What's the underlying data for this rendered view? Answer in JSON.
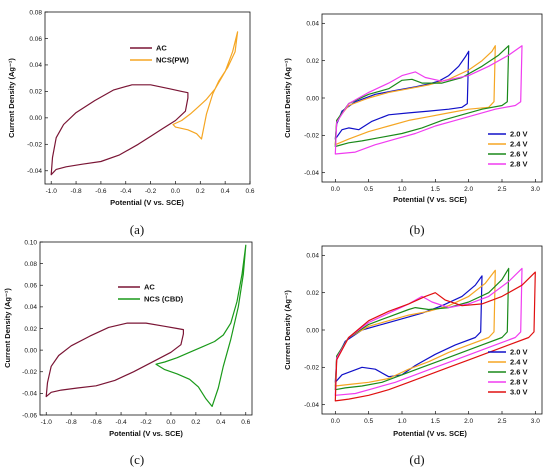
{
  "chart_data": [
    {
      "id": "a",
      "type": "line",
      "caption": "(a)",
      "xlabel": "Potential (V vs. SCE)",
      "ylabel": "Current Density (Ag⁻¹)",
      "xlim": [
        -1.05,
        0.6
      ],
      "ylim": [
        -0.05,
        0.08
      ],
      "xticks": [
        -1.0,
        -0.8,
        -0.6,
        -0.4,
        -0.2,
        0.0,
        0.2,
        0.4,
        0.6
      ],
      "xtick_labels": [
        "-1.0",
        "-0.8",
        "-0.6",
        "-0.4",
        "-0.2",
        "0.0",
        "0.2",
        "0.4",
        "0.6"
      ],
      "yticks": [
        -0.04,
        -0.02,
        0.0,
        0.02,
        0.04,
        0.06,
        0.08
      ],
      "ytick_labels": [
        "-0.04",
        "-0.02",
        "0.00",
        "0.02",
        "0.04",
        "0.06",
        "0.08"
      ],
      "legend_position": "upper-left",
      "series": [
        {
          "name": "AC",
          "color": "#7a1535",
          "x": [
            -1.0,
            -0.99,
            -0.96,
            -0.9,
            -0.8,
            -0.65,
            -0.5,
            -0.35,
            -0.2,
            -0.05,
            0.05,
            0.1,
            0.1,
            0.08,
            0.0,
            -0.1,
            -0.2,
            -0.3,
            -0.45,
            -0.6,
            -0.75,
            -0.88,
            -0.96,
            -1.0
          ],
          "y": [
            -0.043,
            -0.03,
            -0.015,
            -0.005,
            0.004,
            0.013,
            0.021,
            0.025,
            0.025,
            0.022,
            0.02,
            0.019,
            0.015,
            0.005,
            -0.002,
            -0.008,
            -0.014,
            -0.02,
            -0.028,
            -0.033,
            -0.035,
            -0.037,
            -0.039,
            -0.043
          ]
        },
        {
          "name": "NCS(PW)",
          "color": "#f5a623",
          "x": [
            -0.02,
            0.05,
            0.12,
            0.18,
            0.25,
            0.32,
            0.4,
            0.46,
            0.5,
            0.48,
            0.42,
            0.35,
            0.3,
            0.25,
            0.21,
            0.17,
            0.1,
            0.05,
            0.0,
            -0.02
          ],
          "y": [
            -0.005,
            -0.002,
            0.003,
            0.008,
            0.014,
            0.022,
            0.035,
            0.05,
            0.065,
            0.05,
            0.038,
            0.028,
            0.018,
            0.003,
            -0.016,
            -0.012,
            -0.009,
            -0.008,
            -0.007,
            -0.005
          ]
        }
      ]
    },
    {
      "id": "b",
      "type": "line",
      "caption": "(b)",
      "xlabel": "Potential (V vs. SCE)",
      "ylabel": "Current Density (Ag⁻¹)",
      "xlim": [
        -0.2,
        3.1
      ],
      "ylim": [
        -0.045,
        0.045
      ],
      "xticks": [
        0.0,
        0.5,
        1.0,
        1.5,
        2.0,
        2.5,
        3.0
      ],
      "xtick_labels": [
        "0.0",
        "0.5",
        "1.0",
        "1.5",
        "2.0",
        "2.5",
        "3.0"
      ],
      "yticks": [
        -0.04,
        -0.02,
        0.0,
        0.02,
        0.04
      ],
      "ytick_labels": [
        "-0.04",
        "-0.02",
        "0.00",
        "0.02",
        "0.04"
      ],
      "legend_position": "lower-right",
      "series": [
        {
          "name": "2.0 V",
          "color": "#1010c8",
          "x": [
            0.0,
            0.02,
            0.1,
            0.3,
            0.6,
            0.9,
            1.2,
            1.4,
            1.55,
            1.7,
            1.85,
            1.95,
            2.0,
            1.98,
            1.9,
            1.7,
            1.4,
            1.1,
            0.8,
            0.55,
            0.35,
            0.2,
            0.1,
            0.0
          ],
          "y": [
            -0.022,
            -0.014,
            -0.007,
            -0.002,
            0.002,
            0.004,
            0.006,
            0.0075,
            0.009,
            0.012,
            0.017,
            0.022,
            0.025,
            -0.003,
            -0.005,
            -0.006,
            -0.007,
            -0.008,
            -0.009,
            -0.0125,
            -0.017,
            -0.016,
            -0.017,
            -0.022
          ]
        },
        {
          "name": "2.4 V",
          "color": "#f5a623",
          "x": [
            0.0,
            0.02,
            0.2,
            0.5,
            0.8,
            1.1,
            1.4,
            1.7,
            2.0,
            2.2,
            2.35,
            2.4,
            2.38,
            2.3,
            2.0,
            1.7,
            1.4,
            1.1,
            0.8,
            0.5,
            0.2,
            0.0
          ],
          "y": [
            -0.025,
            -0.012,
            -0.004,
            0.0,
            0.003,
            0.005,
            0.007,
            0.01,
            0.015,
            0.02,
            0.025,
            0.028,
            -0.002,
            -0.005,
            -0.006,
            -0.008,
            -0.01,
            -0.012,
            -0.015,
            -0.018,
            -0.022,
            -0.025
          ]
        },
        {
          "name": "2.6 V",
          "color": "#1a8a1a",
          "x": [
            0.0,
            0.02,
            0.2,
            0.5,
            0.8,
            1.0,
            1.15,
            1.3,
            1.6,
            1.9,
            2.2,
            2.45,
            2.6,
            2.58,
            2.5,
            2.2,
            1.9,
            1.6,
            1.3,
            1.0,
            0.7,
            0.4,
            0.2,
            0.0
          ],
          "y": [
            -0.026,
            -0.012,
            -0.003,
            0.002,
            0.005,
            0.0095,
            0.01,
            0.008,
            0.008,
            0.011,
            0.017,
            0.023,
            0.028,
            -0.002,
            -0.004,
            -0.006,
            -0.009,
            -0.012,
            -0.016,
            -0.019,
            -0.021,
            -0.023,
            -0.024,
            -0.026
          ]
        },
        {
          "name": "2.8 V",
          "color": "#f03cf0",
          "x": [
            0.0,
            0.02,
            0.2,
            0.5,
            0.8,
            1.0,
            1.2,
            1.35,
            1.6,
            2.0,
            2.3,
            2.6,
            2.8,
            2.78,
            2.7,
            2.4,
            2.1,
            1.8,
            1.5,
            1.2,
            0.9,
            0.6,
            0.3,
            0.0
          ],
          "y": [
            -0.03,
            -0.013,
            -0.003,
            0.003,
            0.008,
            0.012,
            0.014,
            0.011,
            0.009,
            0.012,
            0.017,
            0.023,
            0.028,
            -0.002,
            -0.004,
            -0.006,
            -0.009,
            -0.012,
            -0.015,
            -0.019,
            -0.022,
            -0.025,
            -0.029,
            -0.03
          ]
        }
      ]
    },
    {
      "id": "c",
      "type": "line",
      "caption": "(c)",
      "xlabel": "Potential (V vs. SCE)",
      "ylabel": "Current Density (Ag⁻¹)",
      "xlim": [
        -1.05,
        0.65
      ],
      "ylim": [
        -0.06,
        0.1
      ],
      "xticks": [
        -1.0,
        -0.8,
        -0.6,
        -0.4,
        -0.2,
        0.0,
        0.2,
        0.4,
        0.6
      ],
      "xtick_labels": [
        "-1.0",
        "-0.8",
        "-0.6",
        "-0.4",
        "-0.2",
        "0.0",
        "0.2",
        "0.4",
        "0.6"
      ],
      "yticks": [
        -0.06,
        -0.04,
        -0.02,
        0.0,
        0.02,
        0.04,
        0.06,
        0.08,
        0.1
      ],
      "ytick_labels": [
        "-0.06",
        "-0.04",
        "-0.02",
        "0.00",
        "0.02",
        "0.04",
        "0.06",
        "0.08",
        "0.10"
      ],
      "legend_position": "upper-left",
      "series": [
        {
          "name": "AC",
          "color": "#7a1535",
          "x": [
            -1.0,
            -0.99,
            -0.96,
            -0.9,
            -0.8,
            -0.65,
            -0.5,
            -0.35,
            -0.2,
            -0.05,
            0.05,
            0.1,
            0.1,
            0.08,
            0.0,
            -0.1,
            -0.2,
            -0.3,
            -0.45,
            -0.6,
            -0.75,
            -0.88,
            -0.96,
            -1.0
          ],
          "y": [
            -0.043,
            -0.03,
            -0.015,
            -0.005,
            0.004,
            0.013,
            0.021,
            0.025,
            0.025,
            0.022,
            0.02,
            0.019,
            0.015,
            0.005,
            -0.002,
            -0.008,
            -0.014,
            -0.02,
            -0.028,
            -0.033,
            -0.035,
            -0.037,
            -0.039,
            -0.043
          ]
        },
        {
          "name": "NCS (CBD)",
          "color": "#1a9a1a",
          "x": [
            -0.12,
            -0.05,
            0.05,
            0.15,
            0.25,
            0.35,
            0.42,
            0.48,
            0.53,
            0.57,
            0.6,
            0.58,
            0.54,
            0.48,
            0.42,
            0.38,
            0.33,
            0.28,
            0.22,
            0.15,
            0.05,
            -0.05,
            -0.12
          ],
          "y": [
            -0.013,
            -0.011,
            -0.007,
            -0.002,
            0.003,
            0.008,
            0.014,
            0.025,
            0.045,
            0.07,
            0.097,
            0.07,
            0.04,
            0.01,
            -0.015,
            -0.035,
            -0.052,
            -0.045,
            -0.034,
            -0.027,
            -0.022,
            -0.018,
            -0.013
          ]
        }
      ]
    },
    {
      "id": "d",
      "type": "line",
      "caption": "(d)",
      "xlabel": "Potential (V vs. SCE)",
      "ylabel": "Current Density (Ag⁻¹)",
      "xlim": [
        -0.2,
        3.1
      ],
      "ylim": [
        -0.045,
        0.045
      ],
      "xticks": [
        0.0,
        0.5,
        1.0,
        1.5,
        2.0,
        2.5,
        3.0
      ],
      "xtick_labels": [
        "0.0",
        "0.5",
        "1.0",
        "1.5",
        "2.0",
        "2.5",
        "3.0"
      ],
      "yticks": [
        -0.04,
        -0.02,
        0.0,
        0.02,
        0.04
      ],
      "ytick_labels": [
        "-0.04",
        "-0.02",
        "0.00",
        "0.02",
        "0.04"
      ],
      "legend_position": "lower-right",
      "series": [
        {
          "name": "2.0 V",
          "color": "#1010c8",
          "x": [
            0.0,
            0.02,
            0.15,
            0.4,
            0.7,
            1.0,
            1.3,
            1.6,
            1.9,
            2.1,
            2.2,
            2.18,
            2.1,
            1.8,
            1.5,
            1.2,
            1.0,
            0.8,
            0.6,
            0.4,
            0.25,
            0.1,
            0.0
          ],
          "y": [
            -0.028,
            -0.015,
            -0.006,
            0.0,
            0.003,
            0.006,
            0.009,
            0.013,
            0.018,
            0.024,
            0.029,
            -0.001,
            -0.004,
            -0.008,
            -0.013,
            -0.019,
            -0.024,
            -0.025,
            -0.021,
            -0.02,
            -0.022,
            -0.024,
            -0.028
          ]
        },
        {
          "name": "2.4 V",
          "color": "#f5a623",
          "x": [
            0.0,
            0.02,
            0.2,
            0.5,
            0.8,
            1.1,
            1.4,
            1.7,
            2.0,
            2.25,
            2.4,
            2.38,
            2.3,
            2.0,
            1.7,
            1.4,
            1.1,
            0.8,
            0.5,
            0.25,
            0.0
          ],
          "y": [
            -0.03,
            -0.014,
            -0.004,
            0.002,
            0.005,
            0.008,
            0.01,
            0.013,
            0.018,
            0.025,
            0.032,
            -0.001,
            -0.004,
            -0.008,
            -0.012,
            -0.017,
            -0.021,
            -0.026,
            -0.028,
            -0.029,
            -0.03
          ]
        },
        {
          "name": "2.6 V",
          "color": "#1a8a1a",
          "x": [
            0.0,
            0.02,
            0.2,
            0.5,
            0.8,
            1.1,
            1.2,
            1.4,
            1.7,
            2.0,
            2.3,
            2.5,
            2.6,
            2.58,
            2.5,
            2.2,
            1.9,
            1.6,
            1.3,
            1.0,
            0.7,
            0.4,
            0.15,
            0.0
          ],
          "y": [
            -0.032,
            -0.014,
            -0.004,
            0.003,
            0.007,
            0.011,
            0.012,
            0.011,
            0.012,
            0.015,
            0.02,
            0.027,
            0.033,
            -0.001,
            -0.004,
            -0.008,
            -0.012,
            -0.016,
            -0.02,
            -0.024,
            -0.028,
            -0.03,
            -0.031,
            -0.032
          ]
        },
        {
          "name": "2.8 V",
          "color": "#f03cf0",
          "x": [
            0.0,
            0.02,
            0.2,
            0.5,
            0.8,
            1.1,
            1.3,
            1.45,
            1.7,
            2.0,
            2.3,
            2.6,
            2.8,
            2.78,
            2.7,
            2.4,
            2.1,
            1.8,
            1.5,
            1.2,
            0.9,
            0.6,
            0.3,
            0.0
          ],
          "y": [
            -0.035,
            -0.015,
            -0.004,
            0.004,
            0.009,
            0.014,
            0.018,
            0.015,
            0.012,
            0.014,
            0.018,
            0.026,
            0.033,
            -0.001,
            -0.004,
            -0.008,
            -0.012,
            -0.016,
            -0.02,
            -0.024,
            -0.028,
            -0.031,
            -0.034,
            -0.035
          ]
        },
        {
          "name": "3.0 V",
          "color": "#e01010",
          "x": [
            0.0,
            0.02,
            0.2,
            0.5,
            0.8,
            1.1,
            1.35,
            1.5,
            1.65,
            1.9,
            2.2,
            2.5,
            2.8,
            3.0,
            2.98,
            2.9,
            2.6,
            2.3,
            2.0,
            1.7,
            1.4,
            1.1,
            0.8,
            0.5,
            0.2,
            0.0
          ],
          "y": [
            -0.038,
            -0.016,
            -0.004,
            0.005,
            0.01,
            0.014,
            0.018,
            0.02,
            0.016,
            0.013,
            0.014,
            0.018,
            0.024,
            0.031,
            -0.001,
            -0.004,
            -0.008,
            -0.012,
            -0.016,
            -0.02,
            -0.024,
            -0.028,
            -0.032,
            -0.035,
            -0.037,
            -0.038
          ]
        }
      ]
    }
  ]
}
